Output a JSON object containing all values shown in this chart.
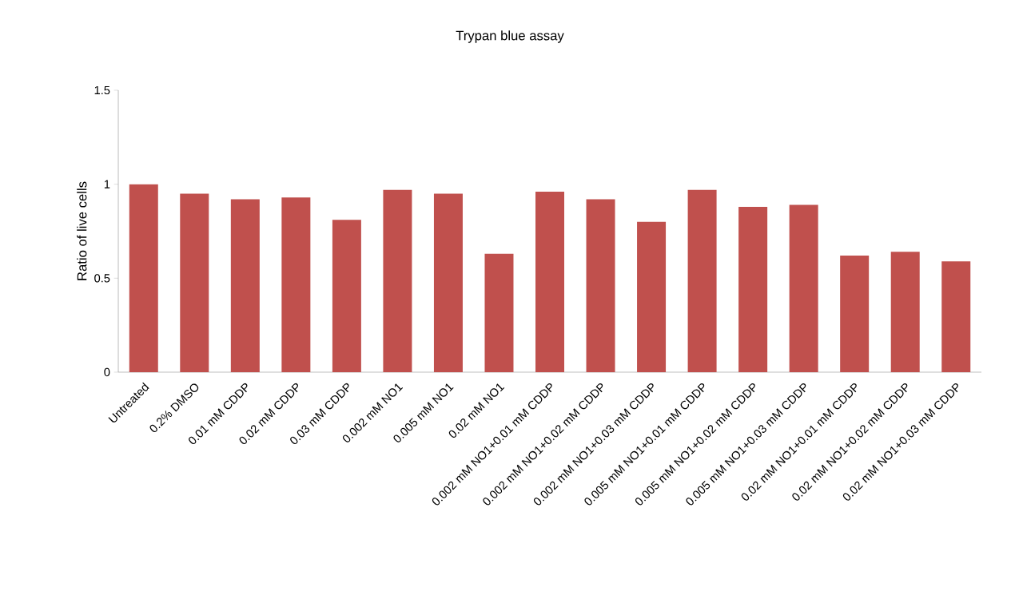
{
  "chart_data": {
    "type": "bar",
    "title": "Trypan blue assay",
    "ylabel": "Ratio of live cells",
    "categories": [
      "Untreated",
      "0.2% DMSO",
      "0.01 mM CDDP",
      "0.02 mM CDDP",
      "0.03 mM CDDP",
      "0.002 mM NO1",
      "0.005 mM NO1",
      "0.02 mM NO1",
      "0.002 mM NO1+0.01 mM CDDP",
      "0.002 mM NO1+0.02 mM CDDP",
      "0.002 mM NO1+0.03 mM CDDP",
      "0.005 mM NO1+0.01 mM CDDP",
      "0.005 mM NO1+0.02 mM CDDP",
      "0.005 mM NO1+0.03 mM CDDP",
      "0.02 mM NO1+0.01 mM CDDP",
      "0.02 mM NO1+0.02 mM CDDP",
      "0.02 mM NO1+0.03 mM CDDP"
    ],
    "values": [
      1.0,
      0.95,
      0.92,
      0.93,
      0.81,
      0.97,
      0.95,
      0.63,
      0.96,
      0.92,
      0.8,
      0.97,
      0.88,
      0.89,
      0.62,
      0.64,
      0.59
    ],
    "color": "#c0504d",
    "ylim": [
      0,
      1.5
    ],
    "yticks": [
      0,
      0.5,
      1,
      1.5
    ]
  }
}
